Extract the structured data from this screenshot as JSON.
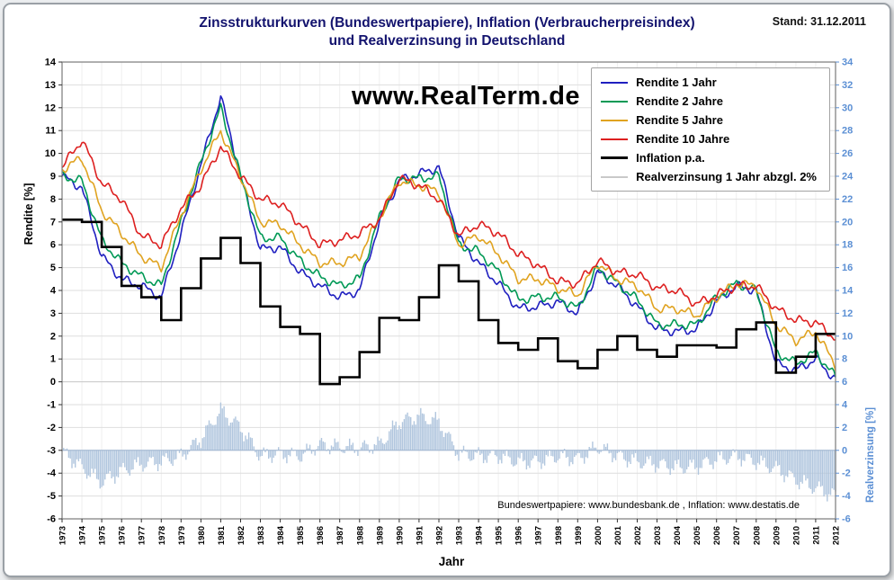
{
  "header": {
    "title_line1": "Zinsstrukturkurven (Bundeswertpapiere), Inflation (Verbraucherpreisindex)",
    "title_line2": "und Realverzinsung in Deutschland",
    "stand": "Stand: 31.12.2011"
  },
  "watermark": "www.RealTerm.de",
  "axes": {
    "left_label": "Rendite [%]",
    "right_label": "Realverzinsung [%]",
    "x_label": "Jahr"
  },
  "footer": {
    "source": "Bundeswertpapiere: www.bundesbank.de ,  Inflation: www.destatis.de"
  },
  "colors": {
    "right_axis": "#5b8fd4",
    "title": "#13136e",
    "bar_fill": "#a9c0da",
    "grid": "#dedede"
  },
  "chart_data": {
    "type": "line",
    "title": "Zinsstrukturkurven (Bundeswertpapiere), Inflation (Verbraucherpreisindex) und Realverzinsung in Deutschland",
    "xlabel": "Jahr",
    "grid": true,
    "legend_position": "top-right",
    "categories": [
      "1973",
      "1974",
      "1975",
      "1976",
      "1977",
      "1978",
      "1979",
      "1980",
      "1981",
      "1982",
      "1983",
      "1984",
      "1985",
      "1986",
      "1987",
      "1988",
      "1989",
      "1990",
      "1991",
      "1992",
      "1993",
      "1994",
      "1995",
      "1996",
      "1997",
      "1998",
      "1999",
      "2000",
      "2001",
      "2002",
      "2003",
      "2004",
      "2005",
      "2006",
      "2007",
      "2008",
      "2009",
      "2010",
      "2011",
      "2012"
    ],
    "y_left": {
      "label": "Rendite [%]",
      "min": -6,
      "max": 14,
      "step": 1
    },
    "y_right": {
      "label": "Realverzinsung [%]",
      "min": -6,
      "max": 34,
      "step": 2
    },
    "series": [
      {
        "name": "Rendite 1 Jahr",
        "style": "line",
        "axis": "left",
        "color": "#2020c0",
        "values": [
          9.0,
          8.5,
          5.5,
          4.5,
          4.2,
          3.7,
          6.5,
          9.5,
          12.5,
          9.0,
          5.8,
          5.9,
          4.8,
          4.2,
          3.7,
          4.0,
          7.0,
          8.8,
          9.1,
          9.4,
          6.3,
          5.2,
          4.3,
          3.2,
          3.3,
          3.5,
          3.0,
          4.8,
          4.2,
          3.3,
          2.3,
          2.2,
          2.3,
          3.5,
          4.2,
          4.0,
          0.8,
          0.5,
          1.0,
          0.1
        ]
      },
      {
        "name": "Rendite 2 Jahre",
        "style": "line",
        "axis": "left",
        "color": "#009955",
        "values": [
          9.0,
          8.8,
          6.2,
          5.2,
          4.6,
          4.2,
          7.0,
          9.6,
          12.0,
          9.0,
          6.3,
          6.3,
          5.3,
          4.6,
          4.2,
          4.5,
          7.2,
          8.9,
          8.9,
          9.0,
          6.0,
          5.7,
          4.8,
          3.6,
          3.7,
          3.7,
          3.2,
          5.0,
          4.3,
          3.6,
          2.5,
          2.5,
          2.5,
          3.7,
          4.3,
          4.0,
          1.3,
          0.8,
          1.3,
          0.2
        ]
      },
      {
        "name": "Rendite 5 Jahre",
        "style": "line",
        "axis": "left",
        "color": "#e0a320",
        "values": [
          9.3,
          9.8,
          7.5,
          6.5,
          5.5,
          5.0,
          7.3,
          9.3,
          11.0,
          9.0,
          7.0,
          6.9,
          6.0,
          5.2,
          5.2,
          5.5,
          7.2,
          8.8,
          8.6,
          8.3,
          6.0,
          6.4,
          5.6,
          4.5,
          4.5,
          4.1,
          3.8,
          5.2,
          4.5,
          4.2,
          3.2,
          3.2,
          2.9,
          3.7,
          4.3,
          4.2,
          2.5,
          1.8,
          2.2,
          0.7
        ]
      },
      {
        "name": "Rendite 10 Jahre",
        "style": "line",
        "axis": "left",
        "color": "#dd2020",
        "values": [
          9.4,
          10.6,
          8.7,
          8.0,
          6.4,
          6.0,
          7.6,
          8.6,
          10.3,
          9.0,
          8.0,
          7.8,
          6.9,
          6.0,
          6.2,
          6.5,
          7.1,
          8.9,
          8.6,
          8.0,
          6.4,
          6.9,
          6.5,
          5.6,
          5.1,
          4.4,
          4.3,
          5.3,
          4.8,
          4.7,
          4.1,
          4.0,
          3.4,
          3.8,
          4.2,
          4.2,
          3.2,
          2.7,
          2.6,
          1.9
        ]
      },
      {
        "name": "Inflation p.a.",
        "style": "step",
        "axis": "left",
        "color": "#000000",
        "values": [
          7.1,
          7.0,
          5.9,
          4.2,
          3.7,
          2.7,
          4.1,
          5.4,
          6.3,
          5.2,
          3.3,
          2.4,
          2.1,
          -0.1,
          0.2,
          1.3,
          2.8,
          2.7,
          3.7,
          5.1,
          4.4,
          2.7,
          1.7,
          1.4,
          1.9,
          0.9,
          0.6,
          1.4,
          2.0,
          1.4,
          1.1,
          1.6,
          1.6,
          1.5,
          2.3,
          2.6,
          0.4,
          1.1,
          2.1,
          2.1
        ]
      },
      {
        "name": "Realverzinsung 1 Jahr abzgl. 2%",
        "style": "bar",
        "axis": "right",
        "color": "#a9c0da",
        "legend_color": "#c9c9c9",
        "values": [
          -0.1,
          -1.5,
          -2.8,
          -1.8,
          -1.2,
          -1.0,
          -0.5,
          1.0,
          3.5,
          2.0,
          -0.5,
          -0.3,
          -0.5,
          0.5,
          0.3,
          0.2,
          0.5,
          2.5,
          3.0,
          2.5,
          -0.3,
          -0.5,
          -0.5,
          -1.0,
          -1.0,
          -0.5,
          -0.8,
          0.3,
          -0.5,
          -1.0,
          -1.2,
          -1.5,
          -1.4,
          -0.8,
          -0.5,
          -1.0,
          -1.6,
          -2.6,
          -3.3,
          -4.0
        ]
      }
    ]
  }
}
